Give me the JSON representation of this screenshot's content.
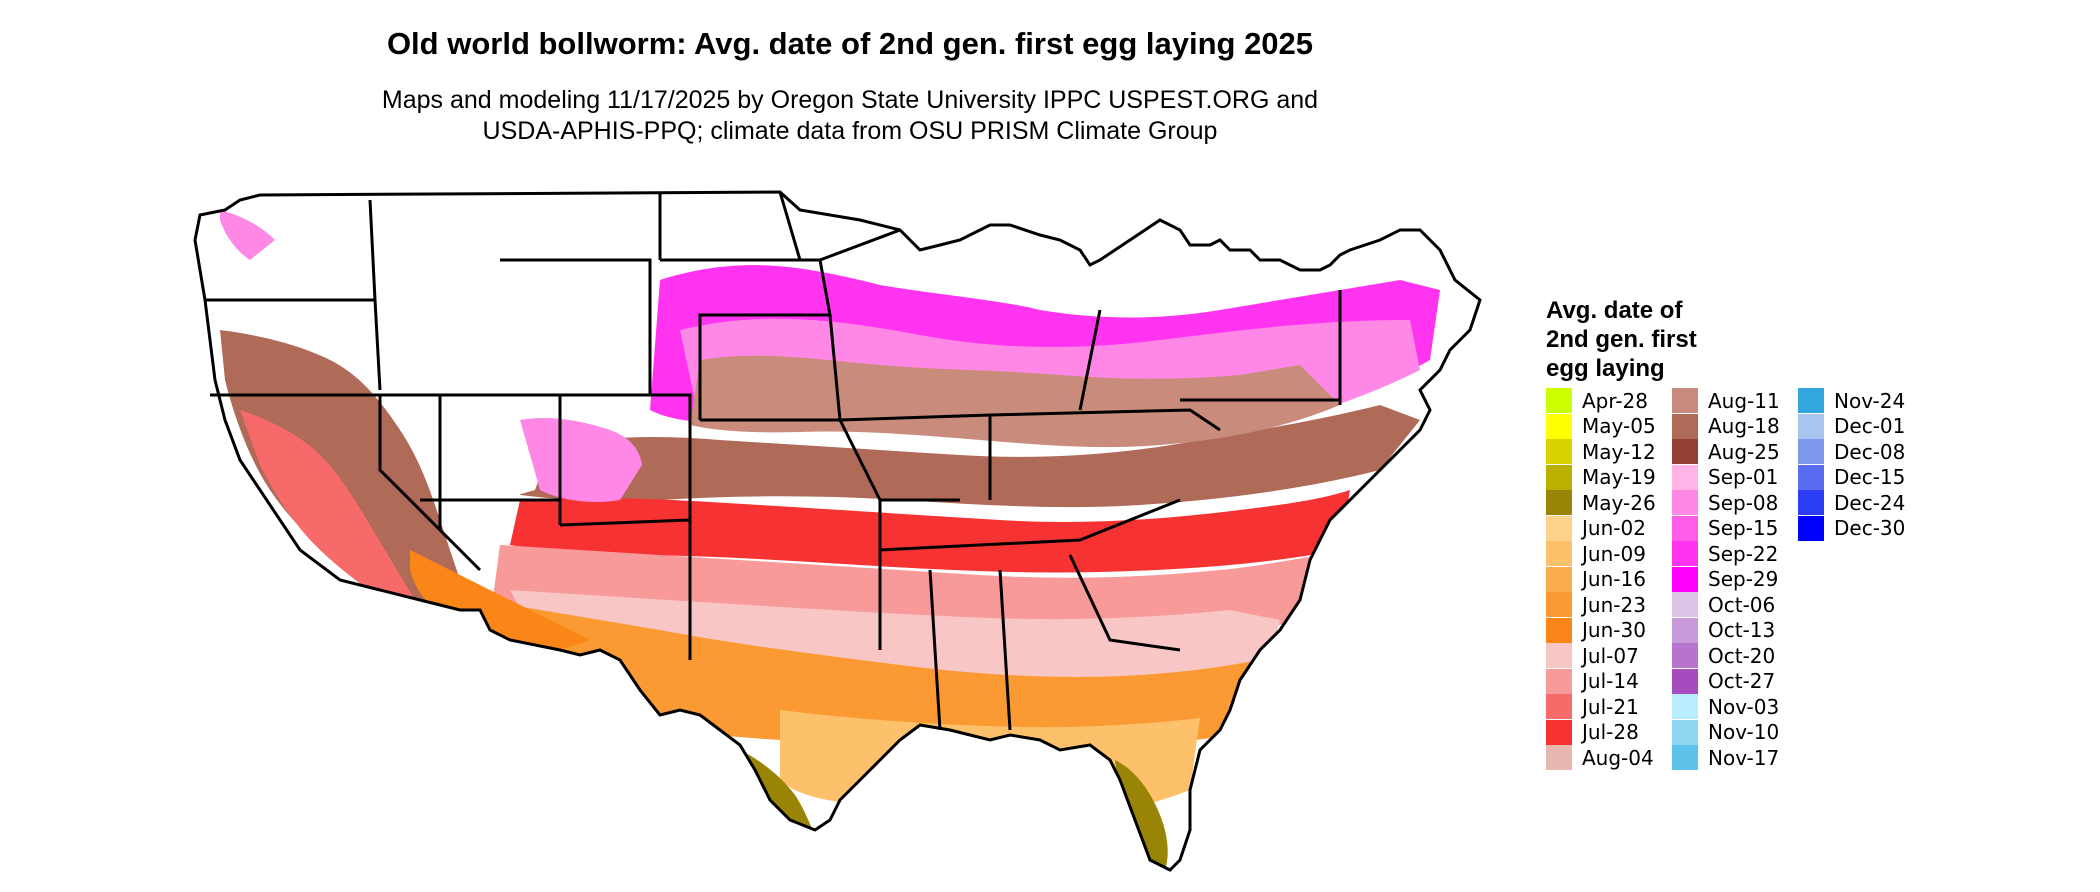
{
  "title": "Old world bollworm: Avg. date of 2nd gen. first egg laying 2025",
  "subtitle_line1": "Maps and modeling 11/17/2025 by Oregon State University IPPC USPEST.ORG and",
  "subtitle_line2": "USDA-APHIS-PPQ; climate data from OSU PRISM Climate Group",
  "legend": {
    "title_lines": [
      "Avg. date of",
      "2nd gen. first",
      "egg laying"
    ],
    "items": [
      {
        "label": "Apr-28",
        "color": "#ccff00"
      },
      {
        "label": "May-05",
        "color": "#ffff00"
      },
      {
        "label": "May-12",
        "color": "#d9d100"
      },
      {
        "label": "May-19",
        "color": "#bbb000"
      },
      {
        "label": "May-26",
        "color": "#9a8406"
      },
      {
        "label": "Jun-02",
        "color": "#fdd38c"
      },
      {
        "label": "Jun-09",
        "color": "#fdc16c"
      },
      {
        "label": "Jun-16",
        "color": "#fcac4f"
      },
      {
        "label": "Jun-23",
        "color": "#fb9a33"
      },
      {
        "label": "Jun-30",
        "color": "#fb8618"
      },
      {
        "label": "Jul-07",
        "color": "#f9c6c6"
      },
      {
        "label": "Jul-14",
        "color": "#f89a9a"
      },
      {
        "label": "Jul-21",
        "color": "#f76a6a"
      },
      {
        "label": "Jul-28",
        "color": "#f73232"
      },
      {
        "label": "Aug-04",
        "color": "#e8b8b0"
      },
      {
        "label": "Aug-11",
        "color": "#c98b7c"
      },
      {
        "label": "Aug-18",
        "color": "#b06a58"
      },
      {
        "label": "Aug-25",
        "color": "#954034"
      },
      {
        "label": "Sep-01",
        "color": "#ffb3e6"
      },
      {
        "label": "Sep-08",
        "color": "#ff88e6"
      },
      {
        "label": "Sep-15",
        "color": "#ff5ce9"
      },
      {
        "label": "Sep-22",
        "color": "#ff33f0"
      },
      {
        "label": "Sep-29",
        "color": "#ff00ff"
      },
      {
        "label": "Oct-06",
        "color": "#dcc3e6"
      },
      {
        "label": "Oct-13",
        "color": "#c99ad9"
      },
      {
        "label": "Oct-20",
        "color": "#b674cc"
      },
      {
        "label": "Oct-27",
        "color": "#a64cbf"
      },
      {
        "label": "Nov-03",
        "color": "#b8ecff"
      },
      {
        "label": "Nov-10",
        "color": "#8ed6f0"
      },
      {
        "label": "Nov-17",
        "color": "#5ec3ea"
      },
      {
        "label": "Nov-24",
        "color": "#33a6e0"
      },
      {
        "label": "Dec-01",
        "color": "#a9c4ee"
      },
      {
        "label": "Dec-08",
        "color": "#7d99ee"
      },
      {
        "label": "Dec-15",
        "color": "#5a6df0"
      },
      {
        "label": "Dec-24",
        "color": "#2c3ef5"
      },
      {
        "label": "Dec-30",
        "color": "#0000ff"
      }
    ]
  },
  "colors": {
    "state_border": "#000000",
    "no_data": "#ffffff",
    "background": "#ffffff"
  }
}
